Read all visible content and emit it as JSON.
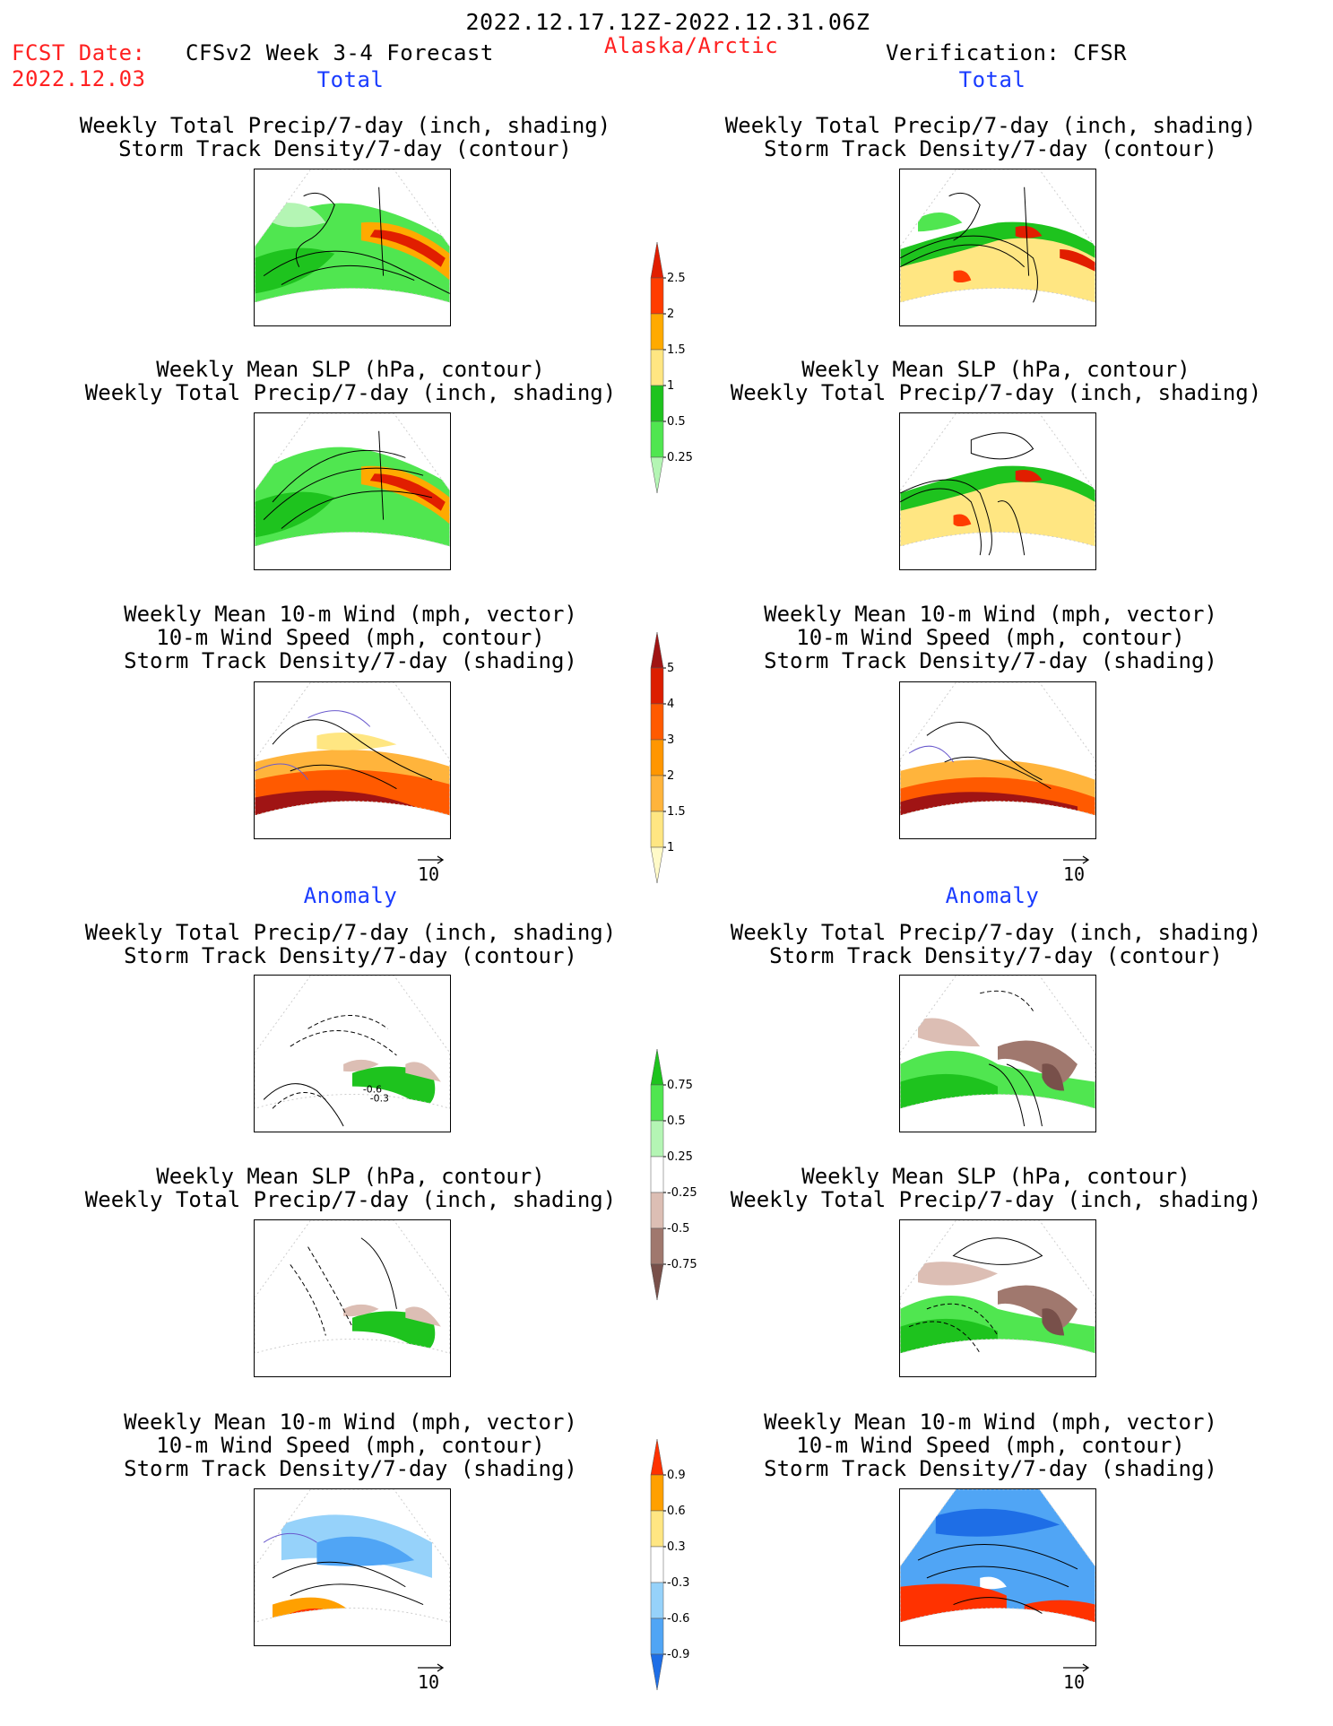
{
  "header": {
    "date_range": "2022.12.17.12Z-2022.12.31.06Z",
    "fcst_label": "FCST Date:",
    "fcst_date": "2022.12.03",
    "forecast_title": "CFSv2 Week 3-4 Forecast",
    "region": "Alaska/Arctic",
    "verification": "Verification: CFSR"
  },
  "sections": {
    "total": "Total",
    "anomaly": "Anomaly"
  },
  "titles": {
    "precip_storm": [
      "Weekly Total Precip/7-day (inch, shading)",
      "Storm Track Density/7-day (contour)"
    ],
    "slp_precip": [
      "Weekly Mean SLP (hPa, contour)",
      "Weekly Total Precip/7-day (inch, shading)"
    ],
    "wind_storm": [
      "Weekly Mean 10-m Wind (mph, vector)",
      "10-m Wind Speed (mph, contour)",
      "Storm Track Density/7-day (shading)"
    ]
  },
  "vector_ref": "10",
  "contour_labels": [
    "-0.6",
    "-0.3"
  ],
  "colorbars": {
    "precip_total": {
      "levels": [
        "0.25",
        "0.5",
        "1",
        "1.5",
        "2",
        "2.5"
      ],
      "colors": [
        "#b4f5b4",
        "#50e650",
        "#1ec31e",
        "#ffe682",
        "#ffaa00",
        "#ff3c00",
        "#e11e00"
      ]
    },
    "storm_total": {
      "levels": [
        "1",
        "1.5",
        "2",
        "3",
        "4",
        "5"
      ],
      "colors": [
        "#fffac8",
        "#ffe682",
        "#ffb43c",
        "#ff9600",
        "#ff5a00",
        "#dc1e00",
        "#a01414"
      ]
    },
    "precip_anom": {
      "levels": [
        "-0.75",
        "-0.5",
        "-0.25",
        "0.25",
        "0.5",
        "0.75"
      ],
      "colors": [
        "#78504a",
        "#a0786e",
        "#dcbeb4",
        "#ffffff",
        "#b4f5b4",
        "#50e650",
        "#1ec31e"
      ]
    },
    "storm_anom": {
      "levels": [
        "-0.9",
        "-0.6",
        "-0.3",
        "0.3",
        "0.6",
        "0.9"
      ],
      "colors": [
        "#1e6ee6",
        "#50a5f5",
        "#96d2fa",
        "#ffffff",
        "#ffe682",
        "#ffa000",
        "#ff3200"
      ]
    }
  }
}
